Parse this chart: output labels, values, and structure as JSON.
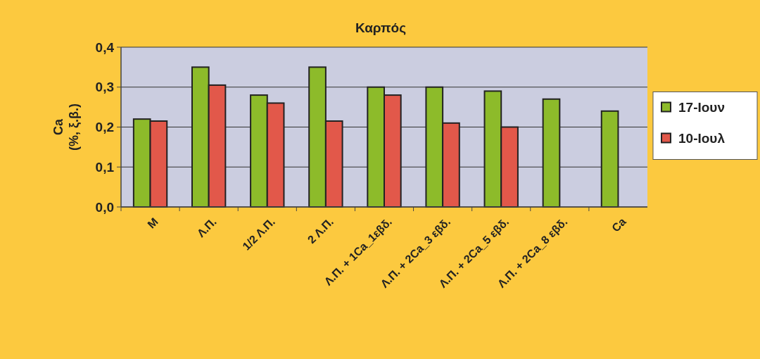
{
  "chart_data": {
    "type": "bar",
    "title": "Καρπός",
    "ylabel": "Ca\n(%, ξ.β.)",
    "categories": [
      "M",
      "Λ.Π.",
      "1/2 Λ.Π.",
      "2 Λ.Π.",
      "Λ.Π. + 1Ca_1εβδ.",
      "Λ.Π. + 2Ca_3 εβδ.",
      "Λ.Π. + 2Ca_5 εβδ.",
      "Λ.Π. + 2Ca_8 εβδ.",
      "Ca"
    ],
    "series": [
      {
        "name": "17-Ιουν",
        "color": "#8dbb2a",
        "values": [
          0.22,
          0.35,
          0.28,
          0.35,
          0.3,
          0.3,
          0.29,
          0.27,
          0.24
        ]
      },
      {
        "name": "10-Ιουλ",
        "color": "#e2584a",
        "values": [
          0.215,
          0.305,
          0.26,
          0.215,
          0.28,
          0.21,
          0.2,
          null,
          null
        ]
      }
    ],
    "ylim": [
      0,
      0.4
    ],
    "yticks": [
      {
        "value": 0,
        "label": "0,0"
      },
      {
        "value": 0.1,
        "label": "0,1"
      },
      {
        "value": 0.2,
        "label": "0,2"
      },
      {
        "value": 0.3,
        "label": "0,3"
      },
      {
        "value": 0.4,
        "label": "0,4"
      }
    ],
    "grid": "y",
    "legend": "right"
  }
}
